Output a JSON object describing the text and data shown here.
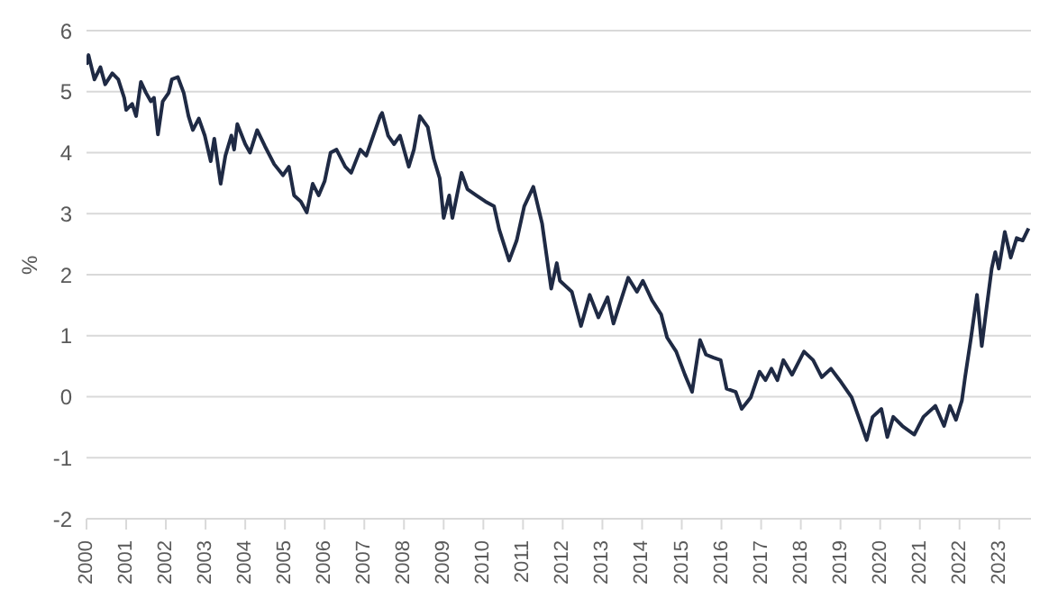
{
  "chart_data": {
    "type": "line",
    "ylabel": "%",
    "xlim": [
      2000,
      2023.8
    ],
    "xticks": [
      2000,
      2001,
      2002,
      2003,
      2004,
      2005,
      2006,
      2007,
      2008,
      2009,
      2010,
      2011,
      2012,
      2013,
      2014,
      2015,
      2016,
      2017,
      2018,
      2019,
      2020,
      2021,
      2022,
      2023
    ],
    "ylim": [
      -2,
      6
    ],
    "yticks": [
      -2,
      -1,
      0,
      1,
      2,
      3,
      4,
      5,
      6
    ],
    "grid": "y",
    "legend": false,
    "marker": "none",
    "line_style": "solid",
    "x": [
      2000.0,
      2000.05,
      2000.2,
      2000.35,
      2000.47,
      2000.65,
      2000.8,
      2000.95,
      2001.0,
      2001.15,
      2001.25,
      2001.37,
      2001.5,
      2001.62,
      2001.7,
      2001.8,
      2001.92,
      2002.07,
      2002.15,
      2002.3,
      2002.45,
      2002.57,
      2002.68,
      2002.83,
      2002.98,
      2003.13,
      2003.22,
      2003.38,
      2003.5,
      2003.65,
      2003.72,
      2003.8,
      2004.0,
      2004.12,
      2004.3,
      2004.5,
      2004.73,
      2004.95,
      2005.1,
      2005.23,
      2005.4,
      2005.55,
      2005.7,
      2005.85,
      2006.0,
      2006.15,
      2006.3,
      2006.52,
      2006.67,
      2006.9,
      2007.05,
      2007.4,
      2007.45,
      2007.6,
      2007.75,
      2007.9,
      2008.12,
      2008.25,
      2008.4,
      2008.6,
      2008.75,
      2008.9,
      2009.0,
      2009.14,
      2009.22,
      2009.45,
      2009.6,
      2009.82,
      2010.05,
      2010.27,
      2010.4,
      2010.65,
      2010.84,
      2011.03,
      2011.26,
      2011.48,
      2011.71,
      2011.85,
      2011.93,
      2012.23,
      2012.46,
      2012.68,
      2012.9,
      2013.13,
      2013.28,
      2013.65,
      2013.87,
      2014.02,
      2014.25,
      2014.48,
      2014.63,
      2014.86,
      2015.08,
      2015.26,
      2015.46,
      2015.61,
      2015.8,
      2015.98,
      2016.13,
      2016.36,
      2016.51,
      2016.74,
      2016.96,
      2017.11,
      2017.26,
      2017.41,
      2017.56,
      2017.78,
      2018.08,
      2018.31,
      2018.53,
      2018.76,
      2018.98,
      2019.28,
      2019.51,
      2019.66,
      2019.81,
      2020.03,
      2020.18,
      2020.33,
      2020.56,
      2020.86,
      2021.09,
      2021.39,
      2021.61,
      2021.76,
      2021.91,
      2022.06,
      2022.14,
      2022.29,
      2022.44,
      2022.56,
      2022.66,
      2022.81,
      2022.9,
      2022.99,
      2023.14,
      2023.29,
      2023.44,
      2023.59,
      2023.74
    ],
    "series": [
      {
        "color": "#1f2a44",
        "values": [
          5.44,
          5.6,
          5.2,
          5.4,
          5.12,
          5.3,
          5.2,
          4.9,
          4.7,
          4.8,
          4.6,
          5.16,
          4.98,
          4.84,
          4.9,
          4.3,
          4.84,
          4.98,
          5.2,
          5.24,
          4.98,
          4.6,
          4.37,
          4.56,
          4.28,
          3.86,
          4.23,
          3.49,
          3.95,
          4.28,
          4.05,
          4.47,
          4.14,
          4.0,
          4.37,
          4.1,
          3.81,
          3.63,
          3.77,
          3.3,
          3.2,
          3.02,
          3.49,
          3.3,
          3.53,
          4.0,
          4.05,
          3.77,
          3.67,
          4.05,
          3.95,
          4.6,
          4.65,
          4.28,
          4.14,
          4.28,
          3.77,
          4.05,
          4.6,
          4.42,
          3.9,
          3.58,
          2.93,
          3.3,
          2.93,
          3.67,
          3.4,
          3.3,
          3.2,
          3.12,
          2.74,
          2.23,
          2.56,
          3.12,
          3.44,
          2.84,
          1.77,
          2.19,
          1.9,
          1.72,
          1.16,
          1.67,
          1.3,
          1.63,
          1.2,
          1.95,
          1.72,
          1.9,
          1.58,
          1.35,
          0.97,
          0.74,
          0.36,
          0.08,
          0.93,
          0.69,
          0.64,
          0.6,
          0.13,
          0.08,
          -0.2,
          -0.01,
          0.41,
          0.27,
          0.46,
          0.27,
          0.6,
          0.36,
          0.74,
          0.6,
          0.32,
          0.46,
          0.27,
          -0.01,
          -0.43,
          -0.71,
          -0.33,
          -0.2,
          -0.66,
          -0.33,
          -0.48,
          -0.62,
          -0.33,
          -0.15,
          -0.48,
          -0.15,
          -0.38,
          -0.06,
          0.32,
          0.97,
          1.67,
          0.83,
          1.35,
          2.1,
          2.37,
          2.1,
          2.7,
          2.28,
          2.6,
          2.56,
          2.76
        ]
      }
    ]
  }
}
